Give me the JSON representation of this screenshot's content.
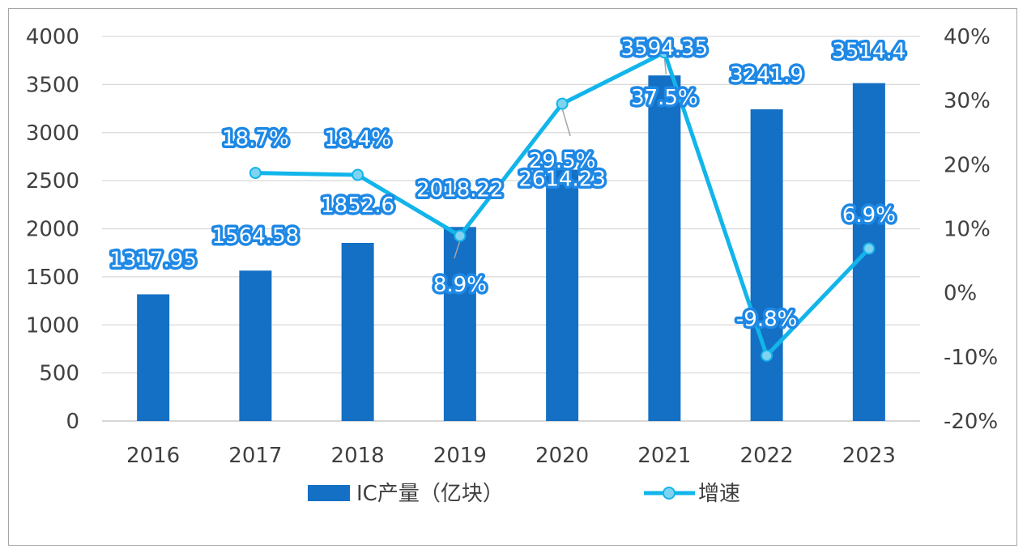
{
  "chart_data": {
    "type": "bar+line",
    "categories": [
      "2016",
      "2017",
      "2018",
      "2019",
      "2020",
      "2021",
      "2022",
      "2023"
    ],
    "series": [
      {
        "name": "IC产量（亿块）",
        "type": "bar",
        "axis": "left",
        "values": [
          1317.95,
          1564.58,
          1852.6,
          2018.22,
          2614.23,
          3594.35,
          3241.9,
          3514.4
        ],
        "labels": [
          "1317.95",
          "1564.58",
          "1852.6",
          "2018.22",
          "2614.23",
          "3594.35",
          "3241.9",
          "3514.4"
        ],
        "color": "#1470c4"
      },
      {
        "name": "增速",
        "type": "line",
        "axis": "right",
        "values": [
          null,
          18.7,
          18.4,
          8.9,
          29.5,
          37.5,
          -9.8,
          6.9
        ],
        "labels": [
          "",
          "18.7%",
          "18.4%",
          "8.9%",
          "29.5%",
          "37.5%",
          "-9.8%",
          "6.9%"
        ],
        "color": "#12b5ea"
      }
    ],
    "left_axis": {
      "min": 0,
      "max": 4000,
      "step": 500,
      "ticks": [
        "0",
        "500",
        "1000",
        "1500",
        "2000",
        "2500",
        "3000",
        "3500",
        "4000"
      ]
    },
    "right_axis": {
      "min": -20,
      "max": 40,
      "step": 10,
      "ticks": [
        "-20%",
        "-10%",
        "0%",
        "10%",
        "20%",
        "30%",
        "40%"
      ]
    },
    "gridlines": true,
    "legend_position": "bottom"
  }
}
